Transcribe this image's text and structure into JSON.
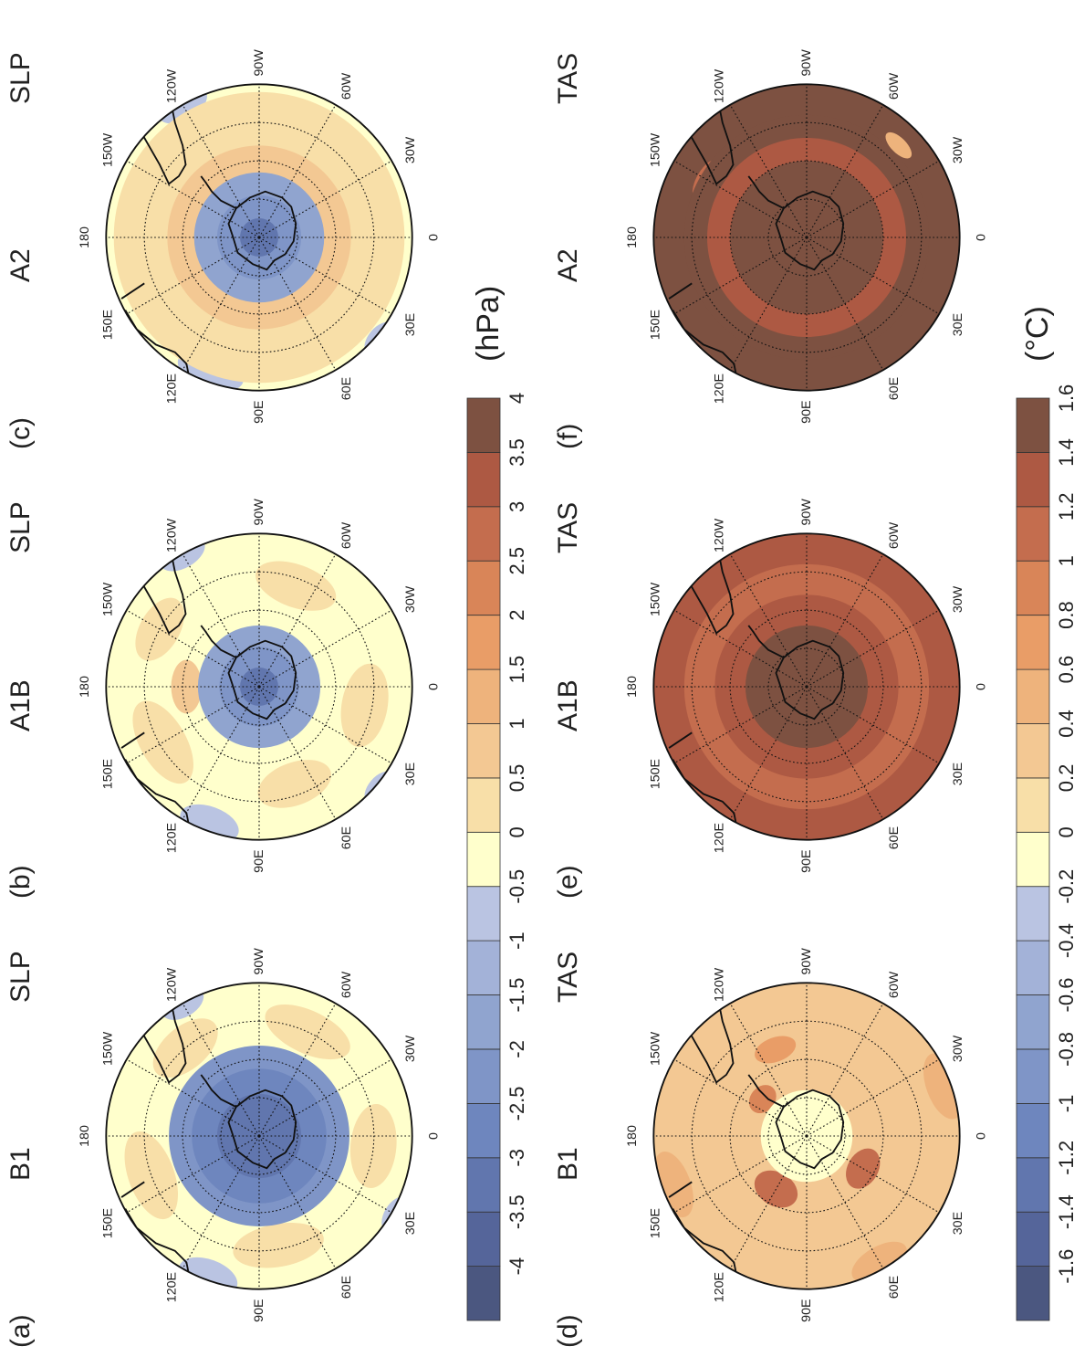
{
  "figure": {
    "rows": [
      {
        "variable": "SLP",
        "unit": "(hPa)",
        "panels": [
          {
            "letter": "(a)",
            "scenario": "B1",
            "variable": "SLP",
            "scheme": "slp_b1"
          },
          {
            "letter": "(b)",
            "scenario": "A1B",
            "variable": "SLP",
            "scheme": "slp_a1b"
          },
          {
            "letter": "(c)",
            "scenario": "A2",
            "variable": "SLP",
            "scheme": "slp_a2"
          }
        ],
        "colorbar": {
          "ticks": [
            "-4",
            "-3.5",
            "-3",
            "-2.5",
            "-2",
            "-1.5",
            "-1",
            "-0.5",
            "0",
            "0.5",
            "1",
            "1.5",
            "2",
            "2.5",
            "3",
            "3.5",
            "4"
          ],
          "colors": [
            "#4b5780",
            "#55659a",
            "#6176ae",
            "#6e86be",
            "#7f95c7",
            "#90a4cf",
            "#a3b2d8",
            "#bac4e2",
            "#ffffcc",
            "#f8dfa8",
            "#f3c893",
            "#eeb37c",
            "#e99d67",
            "#d98558",
            "#c46d4e",
            "#ad5943",
            "#7d5141"
          ]
        }
      },
      {
        "variable": "TAS",
        "unit": "(°C)",
        "panels": [
          {
            "letter": "(d)",
            "scenario": "B1",
            "variable": "TAS",
            "scheme": "tas_b1"
          },
          {
            "letter": "(e)",
            "scenario": "A1B",
            "variable": "TAS",
            "scheme": "tas_a1b"
          },
          {
            "letter": "(f)",
            "scenario": "A2",
            "variable": "TAS",
            "scheme": "tas_a2"
          }
        ],
        "colorbar": {
          "ticks": [
            "-1.6",
            "-1.4",
            "-1.2",
            "-1",
            "-0.8",
            "-0.6",
            "-0.4",
            "-0.2",
            "0",
            "0.2",
            "0.4",
            "0.6",
            "0.8",
            "1",
            "1.2",
            "1.4",
            "1.6"
          ],
          "colors": [
            "#4b5780",
            "#55659a",
            "#6176ae",
            "#6e86be",
            "#7f95c7",
            "#90a4cf",
            "#a3b2d8",
            "#bac4e2",
            "#ffffcc",
            "#f8dfa8",
            "#f3c893",
            "#eeb37c",
            "#e99d67",
            "#d98558",
            "#c46d4e",
            "#ad5943",
            "#7d5141"
          ]
        }
      }
    ],
    "longitude_labels": [
      "180",
      "150W",
      "120W",
      "90W",
      "60W",
      "30W",
      "0",
      "30E",
      "60E",
      "90E",
      "120E",
      "150E"
    ]
  }
}
